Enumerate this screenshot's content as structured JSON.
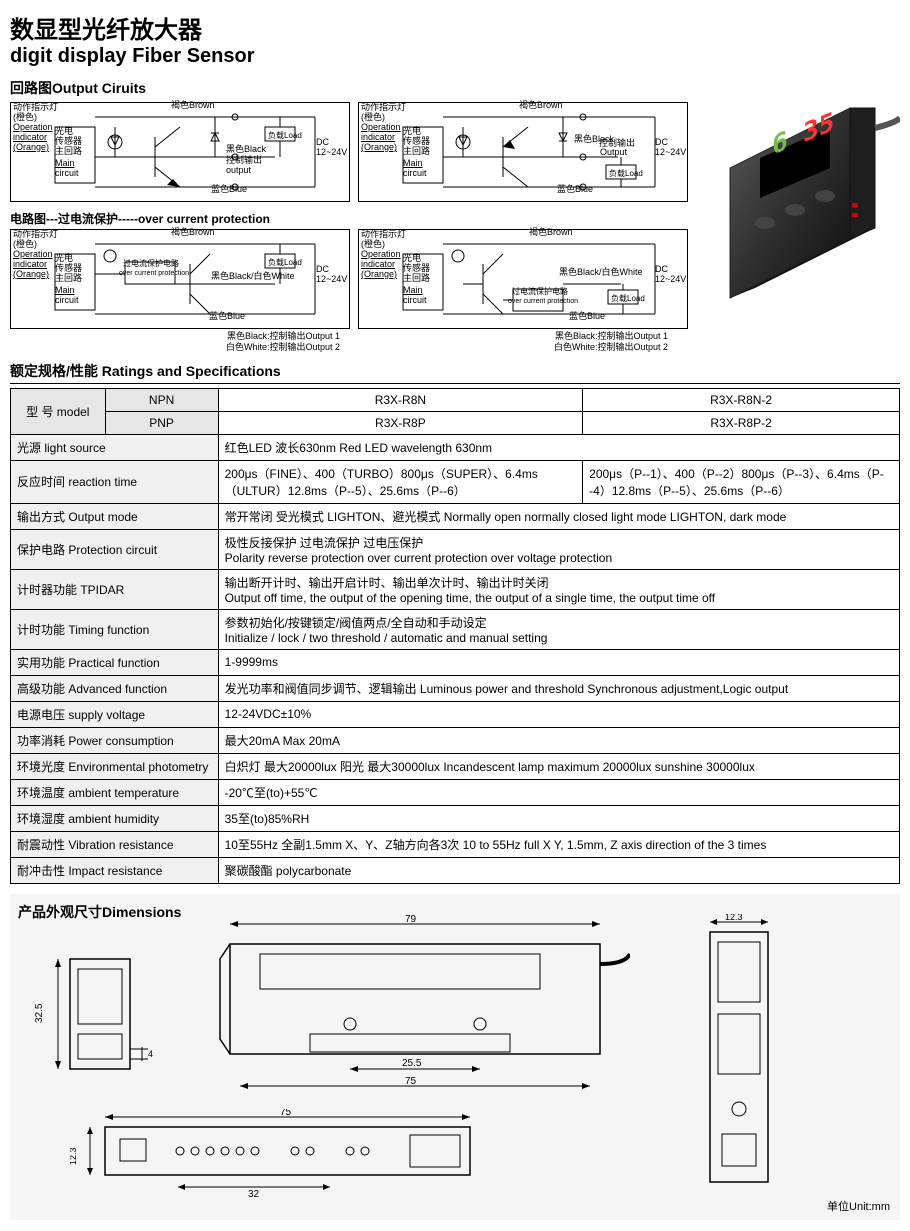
{
  "title_cn": "数显型光纤放大器",
  "title_en": "digit display Fiber Sensor",
  "circuits_heading": "回路图Output Ciruits",
  "overcurrent_heading": "电路图---过电流保护-----over current protection",
  "circuit_labels": {
    "op_indicator_cn": "动作指示灯",
    "op_indicator_color": "(橙色)",
    "op_indicator_en1": "Operation",
    "op_indicator_en2": "indicator",
    "op_indicator_en3": "(Orange)",
    "main_cn1": "光电",
    "main_cn2": "传感器",
    "main_cn3": "主回路",
    "main_en1": "Main",
    "main_en2": "circuit",
    "brown": "褐色Brown",
    "black": "黑色Black",
    "blue": "蓝色Blue",
    "bw": "黑色Black/白色White",
    "load": "负载Load",
    "dc": "DC",
    "voltage": "12~24V",
    "control_out": "控制输出",
    "output_en": "output",
    "output_cap": "Output",
    "ocp_cn": "过电流保护电路",
    "ocp_en": "over current protection",
    "out1": "黑色Black:控制输出Output 1",
    "out2": "白色White:控制输出Output 2"
  },
  "photo": {
    "display_left": "6",
    "display_right": "35"
  },
  "ratings_heading": "额定规格/性能 Ratings and Specifications",
  "table": {
    "model_label": "型 号 model",
    "npn": "NPN",
    "pnp": "PNP",
    "r8n": "R3X-R8N",
    "r8p": "R3X-R8P",
    "r8n2": "R3X-R8N-2",
    "r8p2": "R3X-R8P-2",
    "rows": [
      {
        "label": "光源 light source",
        "value": "红色LED 波长630nm Red LED wavelength 630nm"
      },
      {
        "label": "反应时间 reaction time",
        "value_a": "200μs（FINE）、400（TURBO）800μs（SUPER）、6.4ms（ULTUR）12.8ms（P--5）、25.6ms（P--6）",
        "value_b": "200μs（P--1）、400（P--2）800μs（P--3）、6.4ms（P--4）12.8ms（P--5）、25.6ms（P--6）"
      },
      {
        "label": "输出方式 Output mode",
        "value": "常开常闭 受光模式 LIGHTON、避光模式 Normally open normally closed light mode LIGHTON, dark mode"
      },
      {
        "label": "保护电路 Protection circuit",
        "value": "极性反接保护 过电流保护 过电压保护\nPolarity reverse protection over current protection over voltage protection"
      },
      {
        "label": "计时器功能 TPIDAR",
        "value": "输出断开计时、输出开启计时、输出单次计时、输出计时关闭\nOutput off time, the output of the opening time, the output of a single time, the output time off"
      },
      {
        "label": "计时功能 Timing function",
        "value": "参数初始化/按键锁定/阀值两点/全自动和手动设定\nInitialize / lock / two threshold / automatic and manual setting"
      },
      {
        "label": "实用功能 Practical function",
        "value": "1-9999ms"
      },
      {
        "label": "高级功能   Advanced function",
        "value": "发光功率和阀值同步调节、逻辑输出  Luminous power and threshold Synchronous adjustment,Logic output"
      },
      {
        "label": "电源电压 supply voltage",
        "value": "12-24VDC±10%"
      },
      {
        "label": "功率消耗 Power consumption",
        "value": "最大20mA  Max 20mA"
      },
      {
        "label": "环境光度 Environmental photometry",
        "value": "白炽灯 最大20000lux 阳光 最大30000lux  Incandescent lamp maximum 20000lux sunshine 30000lux"
      },
      {
        "label": "环境温度 ambient temperature",
        "value": "-20℃至(to)+55℃"
      },
      {
        "label": "环境湿度 ambient humidity",
        "value": "35至(to)85%RH"
      },
      {
        "label": "耐震动性 Vibration resistance",
        "value": "10至55Hz 全副1.5mm X、Y、Z轴方向各3次  10 to 55Hz full X Y, 1.5mm, Z axis direction of the 3 times"
      },
      {
        "label": "耐冲击性  Impact resistance",
        "value": "聚碳酸酯 polycarbonate"
      }
    ]
  },
  "dimensions": {
    "heading": "产品外观尺寸Dimensions",
    "d79": "79",
    "d32_5": "32.5",
    "d4": "4",
    "d25_5": "25.5",
    "d75": "75",
    "d12_3a": "12.3",
    "d12_3b": "12.3",
    "d32": "32",
    "unit": "单位Unit:mm"
  },
  "colors": {
    "green": "#6fbd45",
    "red": "#ff3333"
  }
}
